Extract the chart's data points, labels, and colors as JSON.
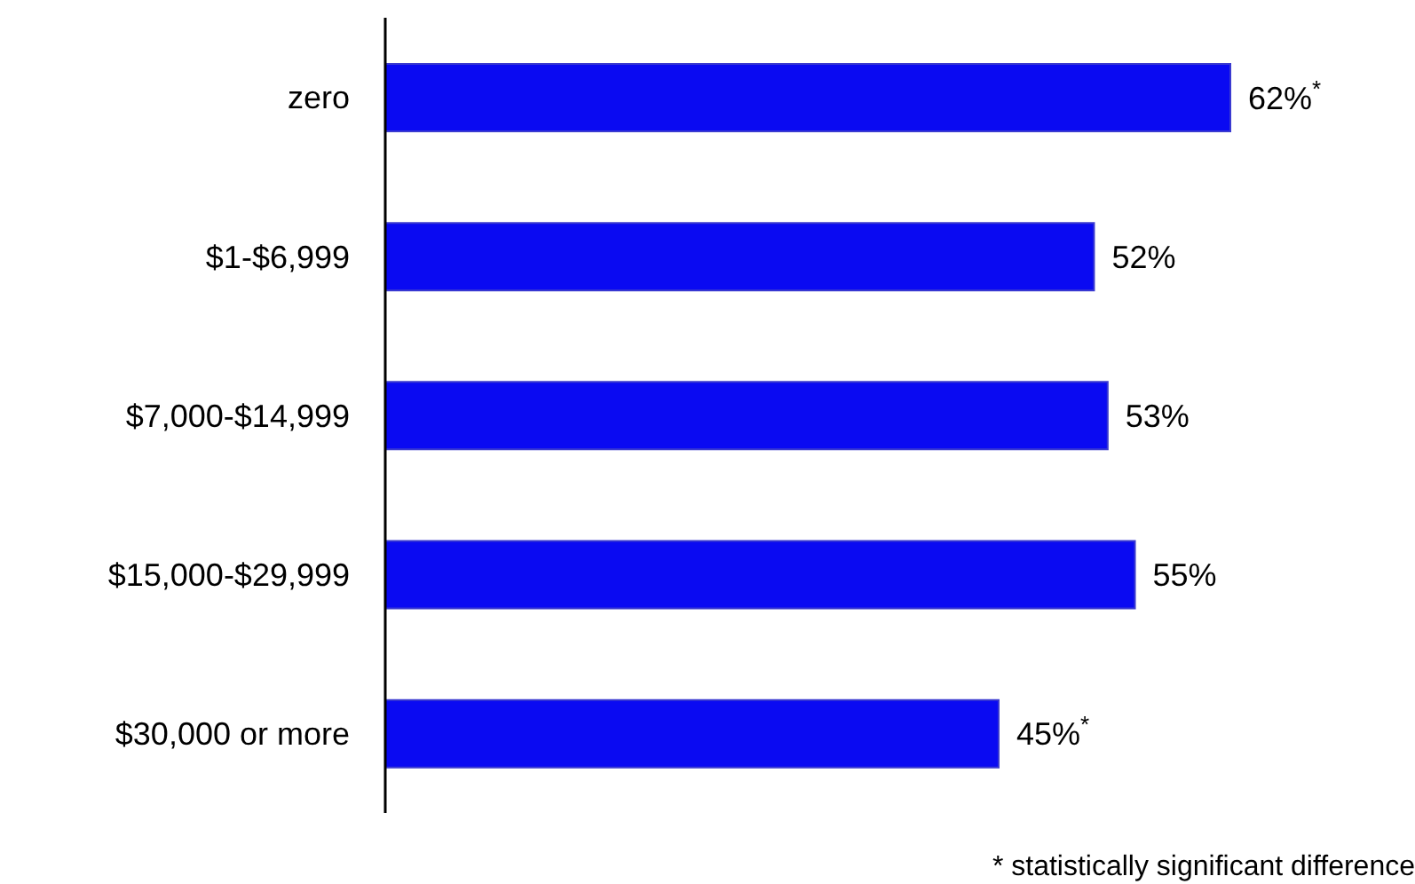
{
  "chart_data": {
    "type": "bar",
    "orientation": "horizontal",
    "categories": [
      "zero",
      "$1-$6,999",
      "$7,000-$14,999",
      "$15,000-$29,999",
      "$30,000 or more"
    ],
    "values": [
      62,
      52,
      53,
      55,
      45
    ],
    "value_labels": [
      "62%$^{*}$",
      "52%",
      "53%",
      "55%",
      "45%$^{*}$"
    ],
    "color": "#0a0af2",
    "annotations": [
      "* statistically significant difference"
    ]
  }
}
